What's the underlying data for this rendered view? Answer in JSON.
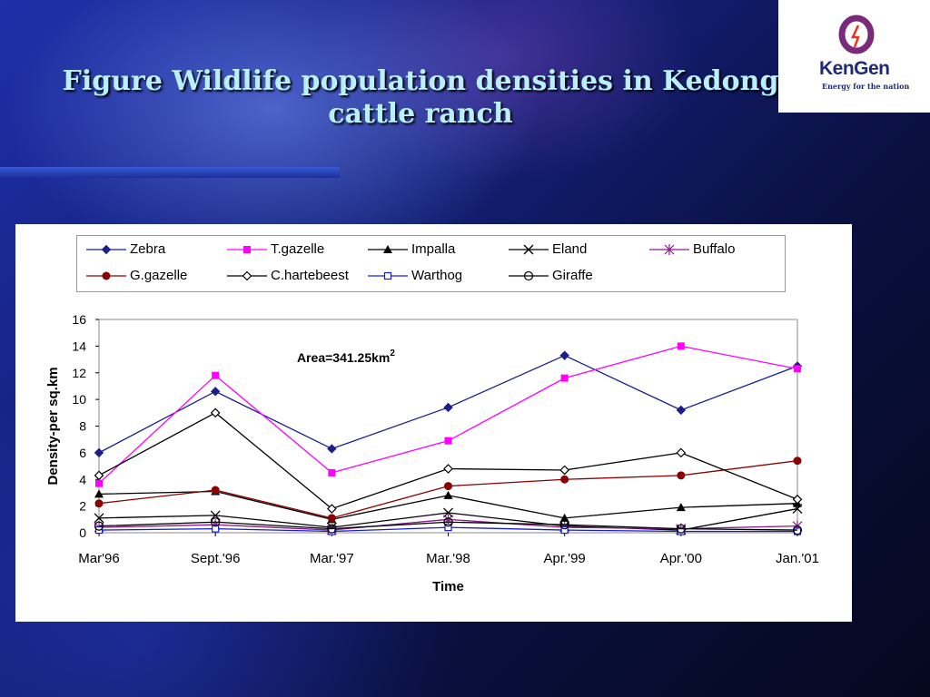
{
  "slide": {
    "title_line1": "Figure  Wildlife population densities in Kedong",
    "title_line2": "cattle ranch"
  },
  "logo": {
    "name": "KenGen",
    "tagline": "Energy for the nation"
  },
  "chart_data": {
    "type": "line",
    "categories": [
      "Mar'96",
      "Sept.'96",
      "Mar.'97",
      "Mar.'98",
      "Apr.'99",
      "Apr.'00",
      "Jan.'01"
    ],
    "xlabel": "Time",
    "ylabel": "Density-per sq.km",
    "ylim": [
      0,
      16
    ],
    "yticks": [
      0,
      2,
      4,
      6,
      8,
      10,
      12,
      14,
      16
    ],
    "annotation": "Area=341.25km",
    "annotation_sup": "2",
    "legend_position": "top",
    "grid": false,
    "series": [
      {
        "name": "Zebra",
        "color": "#1a1f8c",
        "marker": "diamond-filled",
        "values": [
          6.0,
          10.6,
          6.3,
          9.4,
          13.3,
          9.2,
          12.5
        ]
      },
      {
        "name": "T.gazelle",
        "color": "#ff00ff",
        "marker": "square-filled",
        "values": [
          3.7,
          11.8,
          4.5,
          6.9,
          11.6,
          14.0,
          12.3
        ]
      },
      {
        "name": "Impalla",
        "color": "#000000",
        "marker": "triangle-filled",
        "values": [
          2.9,
          3.1,
          1.0,
          2.8,
          1.1,
          1.9,
          2.2
        ]
      },
      {
        "name": "Eland",
        "color": "#000000",
        "marker": "x",
        "values": [
          1.1,
          1.3,
          0.4,
          1.5,
          0.5,
          0.2,
          1.8
        ]
      },
      {
        "name": "Buffalo",
        "color": "#8b1a8b",
        "marker": "star",
        "values": [
          0.4,
          0.6,
          0.2,
          1.0,
          0.4,
          0.3,
          0.5
        ]
      },
      {
        "name": "G.gazelle",
        "color": "#8b0000",
        "marker": "circle-filled",
        "values": [
          2.2,
          3.2,
          1.1,
          3.5,
          4.0,
          4.3,
          5.4
        ]
      },
      {
        "name": "C.hartebeest",
        "color": "#000000",
        "marker": "diamond-open",
        "values": [
          4.3,
          9.0,
          1.8,
          4.8,
          4.7,
          6.0,
          2.5
        ]
      },
      {
        "name": "Warthog",
        "color": "#1a1fcc",
        "marker": "square-open",
        "values": [
          0.2,
          0.3,
          0.1,
          0.4,
          0.2,
          0.1,
          0.1
        ]
      },
      {
        "name": "Giraffe",
        "color": "#000000",
        "marker": "circle-open",
        "values": [
          0.5,
          0.8,
          0.3,
          0.8,
          0.6,
          0.3,
          0.2
        ]
      }
    ]
  }
}
